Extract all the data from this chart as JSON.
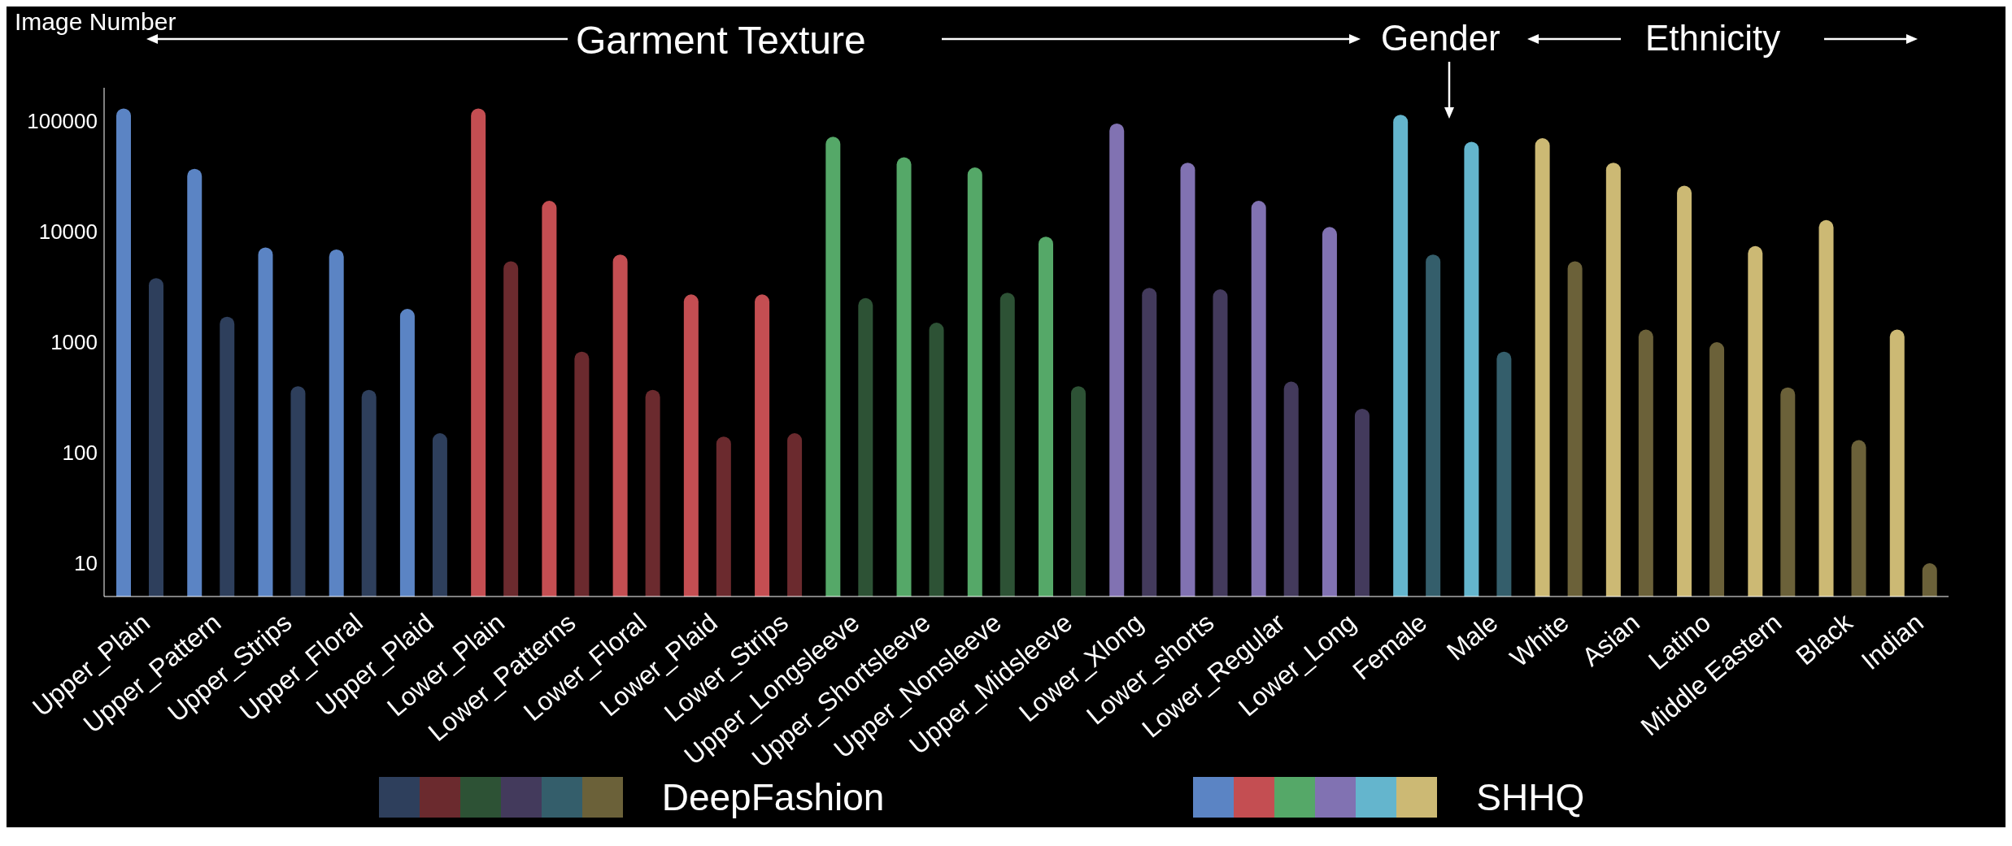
{
  "chart_data": {
    "type": "bar",
    "ylabel": "Image Number",
    "annotations": [
      "Garment Texture",
      "Gender",
      "Ethnicity"
    ],
    "categories": [
      "Upper_Plain",
      "Upper_Pattern",
      "Upper_Strips",
      "Upper_Floral",
      "Upper_Plaid",
      "Lower_Plain",
      "Lower_Patterns",
      "Lower_Floral",
      "Lower_Plaid",
      "Lower_Strips",
      "Upper_Longsleeve",
      "Upper_Shortsleeve",
      "Upper_Nonsleeve",
      "Upper_Midsleeve",
      "Lower_Xlong",
      "Lower_shorts",
      "Lower_Regular",
      "Lower_Long",
      "Female",
      "Male",
      "White",
      "Asian",
      "Latino",
      "Middle Eastern",
      "Black",
      "Indian"
    ],
    "series": [
      {
        "name": "SHHQ",
        "colors": [
          "#5b84c4",
          "#5b84c4",
          "#5b84c4",
          "#5b84c4",
          "#5b84c4",
          "#c44e52",
          "#c44e52",
          "#c44e52",
          "#c44e52",
          "#c44e52",
          "#55a868",
          "#55a868",
          "#55a868",
          "#55a868",
          "#8172b2",
          "#8172b2",
          "#8172b2",
          "#8172b2",
          "#64b5cd",
          "#64b5cd",
          "#ccb974",
          "#ccb974",
          "#ccb974",
          "#ccb974",
          "#ccb974",
          "#ccb974"
        ],
        "values": [
          130000,
          37000,
          7200,
          6900,
          2000,
          130000,
          19000,
          6200,
          2700,
          2700,
          72000,
          47000,
          38000,
          9000,
          95000,
          42000,
          19000,
          11000,
          114000,
          65000,
          70000,
          42000,
          26000,
          7400,
          12700,
          1300
        ]
      },
      {
        "name": "DeepFashion",
        "colors": [
          "#2e3f5c",
          "#2e3f5c",
          "#2e3f5c",
          "#2e3f5c",
          "#2e3f5c",
          "#6b2a2e",
          "#6b2a2e",
          "#6b2a2e",
          "#6b2a2e",
          "#6b2a2e",
          "#2d5235",
          "#2d5235",
          "#2d5235",
          "#2d5235",
          "#433a5c",
          "#433a5c",
          "#433a5c",
          "#433a5c",
          "#345e6b",
          "#345e6b",
          "#6b6139",
          "#6b6139",
          "#6b6139",
          "#6b6139",
          "#6b6139",
          "#6b6139"
        ],
        "values": [
          3800,
          1700,
          400,
          370,
          150,
          5400,
          820,
          370,
          140,
          150,
          2500,
          1500,
          2800,
          400,
          3100,
          3000,
          440,
          250,
          6200,
          820,
          5400,
          1300,
          1000,
          390,
          130,
          10
        ]
      }
    ],
    "log": true,
    "ylim": [
      5,
      200000
    ],
    "yticks": [
      10,
      100,
      1000,
      10000,
      100000
    ],
    "grid": false,
    "legend": "bottom"
  }
}
